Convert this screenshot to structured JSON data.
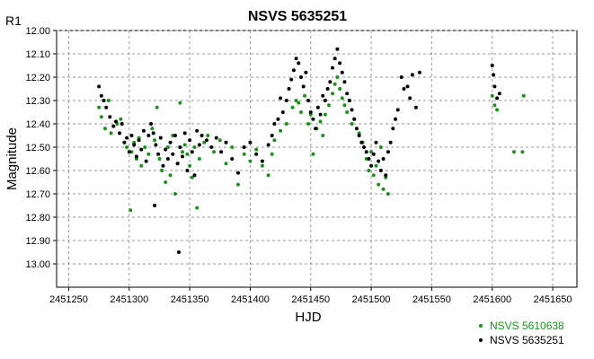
{
  "chart_data": {
    "type": "scatter",
    "title": "NSVS 5635251",
    "corner_label": "R1",
    "xlabel": "HJD",
    "ylabel": "Magnitude",
    "xlim": [
      2451240,
      2451670
    ],
    "ylim": [
      12.0,
      13.1
    ],
    "y_inverted": true,
    "x_ticks": [
      2451250,
      2451300,
      2451350,
      2451400,
      2451450,
      2451500,
      2451550,
      2451600,
      2451650
    ],
    "y_ticks": [
      "12.00",
      "12.10",
      "12.20",
      "12.30",
      "12.40",
      "12.50",
      "12.60",
      "12.70",
      "12.80",
      "12.90",
      "13.00"
    ],
    "grid": true,
    "legend_position": "bottom-right",
    "colors": {
      "series_green": "#1f8f1f",
      "series_black": "#000000",
      "grid": "#9a9a9a",
      "plot_bg": "#ffffff"
    },
    "series": [
      {
        "name": "NSVS 5610638",
        "color": "#1f8f1f",
        "points": [
          [
            2451275,
            12.33
          ],
          [
            2451277,
            12.37
          ],
          [
            2451280,
            12.42
          ],
          [
            2451283,
            12.3
          ],
          [
            2451285,
            12.44
          ],
          [
            2451290,
            12.4
          ],
          [
            2451293,
            12.38
          ],
          [
            2451298,
            12.5
          ],
          [
            2451302,
            12.52
          ],
          [
            2451304,
            12.48
          ],
          [
            2451301,
            12.77
          ],
          [
            2451306,
            12.55
          ],
          [
            2451308,
            12.46
          ],
          [
            2451310,
            12.58
          ],
          [
            2451313,
            12.5
          ],
          [
            2451316,
            12.53
          ],
          [
            2451319,
            12.42
          ],
          [
            2451321,
            12.47
          ],
          [
            2451323,
            12.33
          ],
          [
            2451325,
            12.55
          ],
          [
            2451327,
            12.6
          ],
          [
            2451330,
            12.65
          ],
          [
            2451332,
            12.5
          ],
          [
            2451334,
            12.62
          ],
          [
            2451336,
            12.45
          ],
          [
            2451338,
            12.7
          ],
          [
            2451340,
            12.57
          ],
          [
            2451342,
            12.31
          ],
          [
            2451344,
            12.52
          ],
          [
            2451346,
            12.49
          ],
          [
            2451348,
            12.53
          ],
          [
            2451350,
            12.58
          ],
          [
            2451352,
            12.63
          ],
          [
            2451354,
            12.5
          ],
          [
            2451356,
            12.76
          ],
          [
            2451358,
            12.55
          ],
          [
            2451362,
            12.48
          ],
          [
            2451365,
            12.45
          ],
          [
            2451370,
            12.52
          ],
          [
            2451375,
            12.47
          ],
          [
            2451380,
            12.57
          ],
          [
            2451385,
            12.5
          ],
          [
            2451390,
            12.66
          ],
          [
            2451395,
            12.53
          ],
          [
            2451400,
            12.56
          ],
          [
            2451405,
            12.51
          ],
          [
            2451410,
            12.58
          ],
          [
            2451415,
            12.62
          ],
          [
            2451418,
            12.53
          ],
          [
            2451420,
            12.47
          ],
          [
            2451425,
            12.43
          ],
          [
            2451430,
            12.4
          ],
          [
            2451435,
            12.33
          ],
          [
            2451438,
            12.3
          ],
          [
            2451440,
            12.31
          ],
          [
            2451442,
            12.35
          ],
          [
            2451445,
            12.28
          ],
          [
            2451448,
            12.4
          ],
          [
            2451450,
            12.36
          ],
          [
            2451452,
            12.53
          ],
          [
            2451455,
            12.42
          ],
          [
            2451458,
            12.39
          ],
          [
            2451460,
            12.45
          ],
          [
            2451462,
            12.36
          ],
          [
            2451465,
            12.32
          ],
          [
            2451468,
            12.27
          ],
          [
            2451470,
            12.23
          ],
          [
            2451472,
            12.2
          ],
          [
            2451474,
            12.25
          ],
          [
            2451476,
            12.29
          ],
          [
            2451478,
            12.32
          ],
          [
            2451480,
            12.35
          ],
          [
            2451482,
            12.3
          ],
          [
            2451484,
            12.4
          ],
          [
            2451486,
            12.38
          ],
          [
            2451490,
            12.44
          ],
          [
            2451493,
            12.48
          ],
          [
            2451496,
            12.55
          ],
          [
            2451498,
            12.6
          ],
          [
            2451500,
            12.52
          ],
          [
            2451502,
            12.62
          ],
          [
            2451504,
            12.58
          ],
          [
            2451506,
            12.66
          ],
          [
            2451508,
            12.5
          ],
          [
            2451510,
            12.68
          ],
          [
            2451512,
            12.63
          ],
          [
            2451514,
            12.7
          ],
          [
            2451600,
            12.28
          ],
          [
            2451602,
            12.32
          ],
          [
            2451604,
            12.34
          ],
          [
            2451618,
            12.52
          ],
          [
            2451625,
            12.52
          ],
          [
            2451626,
            12.28
          ]
        ]
      },
      {
        "name": "NSVS 5635251",
        "color": "#000000",
        "points": [
          [
            2451275,
            12.24
          ],
          [
            2451277,
            12.28
          ],
          [
            2451279,
            12.3
          ],
          [
            2451281,
            12.33
          ],
          [
            2451284,
            12.37
          ],
          [
            2451287,
            12.41
          ],
          [
            2451289,
            12.39
          ],
          [
            2451292,
            12.44
          ],
          [
            2451294,
            12.4
          ],
          [
            2451296,
            12.48
          ],
          [
            2451298,
            12.46
          ],
          [
            2451300,
            12.52
          ],
          [
            2451302,
            12.45
          ],
          [
            2451304,
            12.49
          ],
          [
            2451306,
            12.54
          ],
          [
            2451308,
            12.47
          ],
          [
            2451310,
            12.51
          ],
          [
            2451312,
            12.43
          ],
          [
            2451314,
            12.56
          ],
          [
            2451316,
            12.45
          ],
          [
            2451318,
            12.4
          ],
          [
            2451320,
            12.44
          ],
          [
            2451321,
            12.75
          ],
          [
            2451322,
            12.49
          ],
          [
            2451324,
            12.53
          ],
          [
            2451326,
            12.46
          ],
          [
            2451328,
            12.58
          ],
          [
            2451330,
            12.51
          ],
          [
            2451332,
            12.55
          ],
          [
            2451334,
            12.48
          ],
          [
            2451336,
            12.53
          ],
          [
            2451338,
            12.45
          ],
          [
            2451340,
            12.57
          ],
          [
            2451341,
            12.95
          ],
          [
            2451342,
            12.5
          ],
          [
            2451344,
            12.54
          ],
          [
            2451346,
            12.44
          ],
          [
            2451348,
            12.6
          ],
          [
            2451350,
            12.47
          ],
          [
            2451352,
            12.52
          ],
          [
            2451354,
            12.62
          ],
          [
            2451356,
            12.43
          ],
          [
            2451358,
            12.49
          ],
          [
            2451360,
            12.45
          ],
          [
            2451364,
            12.47
          ],
          [
            2451368,
            12.5
          ],
          [
            2451372,
            12.46
          ],
          [
            2451376,
            12.52
          ],
          [
            2451380,
            12.48
          ],
          [
            2451385,
            12.55
          ],
          [
            2451390,
            12.61
          ],
          [
            2451395,
            12.5
          ],
          [
            2451400,
            12.48
          ],
          [
            2451405,
            12.53
          ],
          [
            2451410,
            12.56
          ],
          [
            2451415,
            12.49
          ],
          [
            2451418,
            12.45
          ],
          [
            2451420,
            12.4
          ],
          [
            2451423,
            12.38
          ],
          [
            2451425,
            12.29
          ],
          [
            2451427,
            12.35
          ],
          [
            2451430,
            12.3
          ],
          [
            2451432,
            12.25
          ],
          [
            2451434,
            12.21
          ],
          [
            2451436,
            12.17
          ],
          [
            2451438,
            12.12
          ],
          [
            2451440,
            12.14
          ],
          [
            2451442,
            12.2
          ],
          [
            2451444,
            12.24
          ],
          [
            2451446,
            12.18
          ],
          [
            2451448,
            12.3
          ],
          [
            2451450,
            12.35
          ],
          [
            2451452,
            12.38
          ],
          [
            2451454,
            12.42
          ],
          [
            2451456,
            12.33
          ],
          [
            2451458,
            12.36
          ],
          [
            2451460,
            12.28
          ],
          [
            2451462,
            12.3
          ],
          [
            2451464,
            12.25
          ],
          [
            2451466,
            12.22
          ],
          [
            2451468,
            12.16
          ],
          [
            2451470,
            12.12
          ],
          [
            2451472,
            12.08
          ],
          [
            2451474,
            12.14
          ],
          [
            2451476,
            12.18
          ],
          [
            2451478,
            12.22
          ],
          [
            2451480,
            12.27
          ],
          [
            2451482,
            12.3
          ],
          [
            2451484,
            12.34
          ],
          [
            2451486,
            12.38
          ],
          [
            2451488,
            12.42
          ],
          [
            2451490,
            12.45
          ],
          [
            2451492,
            12.48
          ],
          [
            2451494,
            12.5
          ],
          [
            2451496,
            12.52
          ],
          [
            2451498,
            12.55
          ],
          [
            2451500,
            12.58
          ],
          [
            2451502,
            12.53
          ],
          [
            2451504,
            12.48
          ],
          [
            2451506,
            12.56
          ],
          [
            2451508,
            12.6
          ],
          [
            2451510,
            12.55
          ],
          [
            2451512,
            12.62
          ],
          [
            2451514,
            12.52
          ],
          [
            2451516,
            12.48
          ],
          [
            2451518,
            12.42
          ],
          [
            2451520,
            12.38
          ],
          [
            2451522,
            12.34
          ],
          [
            2451525,
            12.2
          ],
          [
            2451527,
            12.25
          ],
          [
            2451530,
            12.24
          ],
          [
            2451532,
            12.29
          ],
          [
            2451534,
            12.19
          ],
          [
            2451537,
            12.33
          ],
          [
            2451540,
            12.18
          ],
          [
            2451600,
            12.15
          ],
          [
            2451601,
            12.19
          ],
          [
            2451602,
            12.24
          ],
          [
            2451604,
            12.29
          ],
          [
            2451606,
            12.27
          ]
        ]
      }
    ]
  }
}
